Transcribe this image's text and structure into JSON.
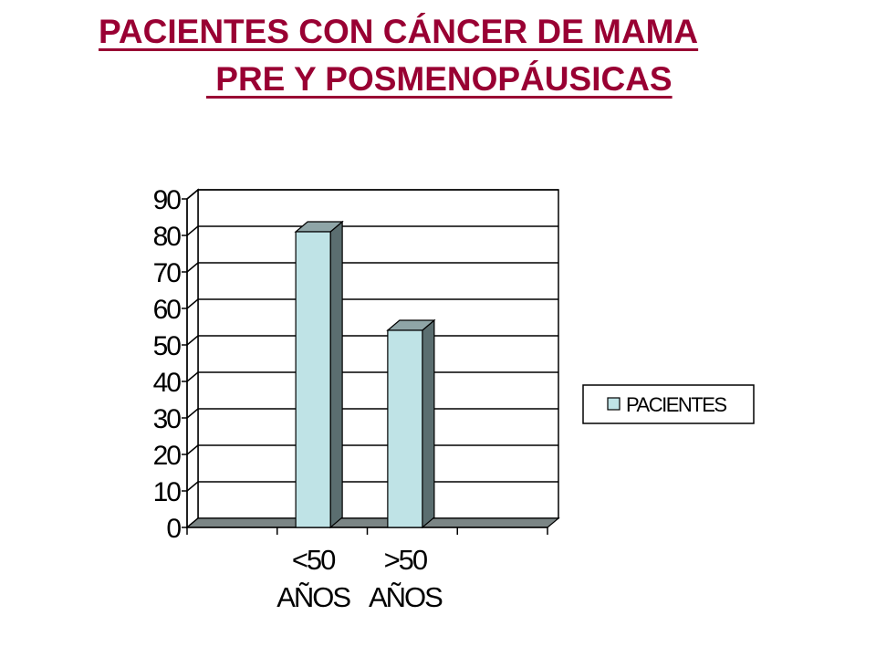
{
  "title": {
    "line1": "PACIENTES CON CÁNCER DE MAMA",
    "line2": " PRE Y POSMENOPÁUSICAS"
  },
  "colors": {
    "title": "#990033",
    "bar_front": "#bfe3e6",
    "bar_side": "#5b6e70",
    "bar_top": "#8fa5a7",
    "floor": "#7b8585"
  },
  "chart_data": {
    "type": "bar",
    "three_d": true,
    "categories": [
      "<50 AÑOS",
      ">50 AÑOS"
    ],
    "category_lines": [
      [
        "<50",
        "AÑOS"
      ],
      [
        ">50",
        "AÑOS"
      ]
    ],
    "series": [
      {
        "name": "PACIENTES",
        "values": [
          81,
          54
        ]
      }
    ],
    "ylim": [
      0,
      90
    ],
    "yticks": [
      0,
      10,
      20,
      30,
      40,
      50,
      60,
      70,
      80,
      90
    ],
    "grid": true,
    "legend": "right"
  }
}
